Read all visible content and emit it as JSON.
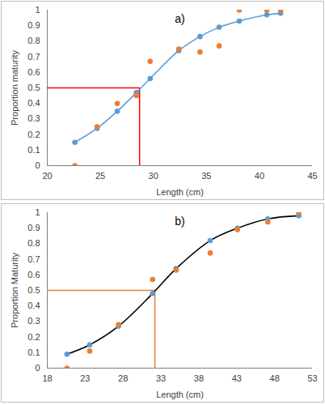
{
  "chart_data": [
    {
      "type": "line",
      "annotations": [
        {
          "text": "a)"
        }
      ],
      "x_label": "Length (cm)",
      "y_label": "Proportion maturity",
      "x": [
        22.6,
        24.7,
        26.6,
        28.4,
        29.7,
        32.4,
        34.4,
        36.2,
        38.1,
        40.7,
        42.0
      ],
      "series": [
        {
          "type": "line",
          "color": "#5b9bd5",
          "line_style": "solid",
          "values": [
            0.15,
            0.24,
            0.35,
            0.47,
            0.56,
            0.74,
            0.83,
            0.89,
            0.93,
            0.97,
            0.98
          ]
        },
        {
          "type": "scatter",
          "color": "#5b9bd5",
          "marker": "circle",
          "values": [
            0.15,
            0.24,
            0.35,
            0.47,
            0.56,
            0.74,
            0.83,
            0.89,
            0.93,
            0.97,
            0.98
          ]
        },
        {
          "type": "scatter",
          "color": "#ed7d31",
          "marker": "circle",
          "values": [
            0.0,
            0.25,
            0.4,
            0.45,
            0.67,
            0.75,
            0.73,
            0.77,
            1.0,
            1.0,
            1.0
          ]
        }
      ],
      "reference": {
        "x": 28.7,
        "y": 0.5,
        "color": "#ff0000"
      },
      "xlim": [
        20,
        45
      ],
      "xticks": [
        20,
        25,
        30,
        35,
        40,
        45
      ],
      "ylim": [
        0,
        1
      ],
      "yticks": [
        0,
        0.1,
        0.2,
        0.3,
        0.4,
        0.5,
        0.6,
        0.7,
        0.8,
        0.9,
        1
      ],
      "grid": false
    },
    {
      "type": "line",
      "annotations": [
        {
          "text": "b)"
        }
      ],
      "x_label": "Length (cm)",
      "y_label": "Proportion Maturity",
      "x": [
        20.6,
        23.6,
        27.4,
        31.9,
        35.0,
        39.5,
        43.1,
        47.1,
        51.2
      ],
      "series": [
        {
          "type": "line",
          "color": "#000000",
          "line_style": "solid",
          "values": [
            0.09,
            0.15,
            0.27,
            0.48,
            0.64,
            0.82,
            0.9,
            0.96,
            0.98
          ]
        },
        {
          "type": "scatter",
          "color": "#5b9bd5",
          "marker": "circle",
          "values": [
            0.09,
            0.15,
            0.27,
            0.48,
            0.64,
            0.82,
            0.9,
            0.96,
            0.98
          ]
        },
        {
          "type": "scatter",
          "color": "#ed7d31",
          "marker": "circle",
          "values": [
            0.0,
            0.11,
            0.28,
            0.57,
            0.63,
            0.74,
            0.89,
            0.94,
            1.0
          ]
        }
      ],
      "reference": {
        "x": 32.2,
        "y": 0.5,
        "color": "#ed7d31"
      },
      "xlim": [
        18,
        53
      ],
      "xticks": [
        18,
        23,
        28,
        33,
        38,
        43,
        48,
        53
      ],
      "ylim": [
        0,
        1
      ],
      "yticks": [
        0,
        0.1,
        0.2,
        0.3,
        0.4,
        0.5,
        0.6,
        0.7,
        0.8,
        0.9,
        1
      ],
      "grid": false
    }
  ]
}
